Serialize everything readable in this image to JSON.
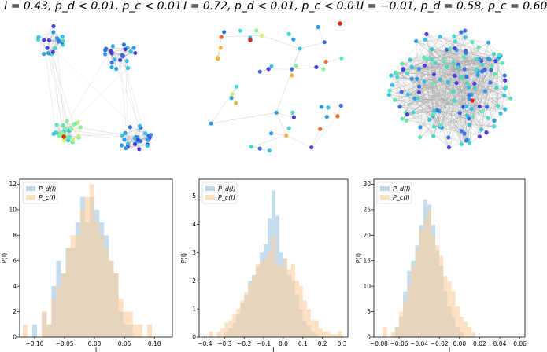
{
  "chart_data": [
    {
      "type": "network",
      "title": "I = 0.43, p_d < 0.01, p_c < 0.01",
      "title_parts": {
        "stat": "I = 0.43,",
        "pd": "p_d < 0.01,",
        "pc": "p_c < 0.01"
      },
      "structure": "four clusters"
    },
    {
      "type": "network",
      "title": "I = 0.72, p_d < 0.01, p_c < 0.01",
      "title_parts": {
        "stat": "I = 0.72,",
        "pd": "p_d < 0.01,",
        "pc": "p_c < 0.01"
      },
      "structure": "sparse tree"
    },
    {
      "type": "network",
      "title": "I = -0.01, p_d = 0.58, p_c = 0.60",
      "title_parts": {
        "stat": "I = −0.01,",
        "pd": "p_d = 0.58,",
        "pc": "p_c = 0.60"
      },
      "structure": "dense random"
    },
    {
      "type": "histogram",
      "xlabel": "I",
      "ylabel": "P(I)",
      "xlim": [
        -0.125,
        0.13
      ],
      "ylim": [
        0,
        12.4
      ],
      "xticks": [
        -0.1,
        -0.05,
        0.0,
        0.05,
        0.1
      ],
      "xtick_labels": [
        "−0.10",
        "−0.05",
        "0.00",
        "0.05",
        "0.10"
      ],
      "yticks": [
        0,
        2,
        4,
        6,
        8,
        10,
        12
      ],
      "bin_start": -0.12,
      "bin_width": 0.008,
      "series": [
        {
          "name": "P_d(I)",
          "color": "#9ec8e4",
          "values": [
            0,
            0,
            1,
            0,
            2,
            1,
            4,
            6,
            5,
            7,
            7,
            9,
            11,
            9,
            11,
            10,
            9,
            8,
            6,
            5,
            2,
            1,
            1,
            0,
            0,
            0,
            0,
            0,
            0,
            0,
            0,
            0
          ]
        },
        {
          "name": "P_c(I)",
          "color": "#fdcf9e",
          "values": [
            1,
            0,
            0,
            0,
            2,
            1,
            3,
            4,
            5,
            7,
            8,
            8,
            10,
            11,
            12,
            9,
            8,
            7,
            6,
            5,
            3,
            2,
            2,
            1,
            1,
            0,
            1,
            0,
            0,
            0,
            0,
            0
          ]
        }
      ],
      "legend": [
        "P_d(I)",
        "P_c(I)"
      ],
      "legend_loc": "upper left"
    },
    {
      "type": "histogram",
      "xlabel": "I",
      "ylabel": "P(I)",
      "xlim": [
        -0.43,
        0.33
      ],
      "ylim": [
        0,
        5.6
      ],
      "xticks": [
        -0.4,
        -0.3,
        -0.2,
        -0.1,
        0.0,
        0.1,
        0.2,
        0.3
      ],
      "xtick_labels": [
        "−0.4",
        "−0.3",
        "−0.2",
        "−0.1",
        "0.0",
        "0.1",
        "0.2",
        "0.3"
      ],
      "yticks": [
        0,
        1,
        2,
        3,
        4,
        5
      ],
      "bin_start": -0.4,
      "bin_width": 0.02,
      "series": [
        {
          "name": "P_d(I)",
          "color": "#9ec8e4",
          "values": [
            0,
            0,
            0,
            0,
            0,
            0.2,
            0.3,
            0.5,
            0.8,
            1.2,
            1.5,
            2,
            2.2,
            2.5,
            3,
            3.3,
            4.2,
            5.2,
            4.3,
            3,
            2.8,
            2.2,
            2,
            1.5,
            1,
            0.6,
            0.4,
            0.2,
            0.1,
            0,
            0,
            0,
            0,
            0,
            0,
            0,
            0
          ]
        },
        {
          "name": "P_c(I)",
          "color": "#fdcf9e",
          "values": [
            0,
            0.2,
            0,
            0.2,
            0.3,
            0.5,
            0.6,
            0.8,
            1,
            1.3,
            1.6,
            1.9,
            2.2,
            2.6,
            2.7,
            2.8,
            3,
            3.6,
            2.6,
            2.5,
            2.8,
            2.4,
            2.6,
            2,
            1.8,
            1.3,
            1,
            0.6,
            0.6,
            0.3,
            0.2,
            0.2,
            0.1,
            0.1,
            0.2,
            0,
            0
          ]
        }
      ],
      "legend": [
        "P_d(I)",
        "P_c(I)"
      ],
      "legend_loc": "upper left"
    },
    {
      "type": "histogram",
      "xlabel": "I",
      "ylabel": "P(I)",
      "xlim": [
        -0.085,
        0.065
      ],
      "ylim": [
        0,
        31
      ],
      "xticks": [
        -0.08,
        -0.06,
        -0.04,
        -0.02,
        0.0,
        0.02,
        0.04,
        0.06
      ],
      "xtick_labels": [
        "−0.08",
        "−0.06",
        "−0.04",
        "−0.02",
        "0.00",
        "0.02",
        "0.04",
        "0.06"
      ],
      "yticks": [
        0,
        5,
        10,
        15,
        20,
        25,
        30
      ],
      "bin_start": -0.08,
      "bin_width": 0.004,
      "series": [
        {
          "name": "P_d(I)",
          "color": "#9ec8e4",
          "values": [
            0,
            0,
            0,
            0,
            2,
            4,
            9,
            13,
            15,
            18,
            22,
            27,
            26,
            22,
            17,
            14,
            9,
            6,
            4,
            2,
            1,
            0,
            0,
            0,
            0,
            0,
            0,
            0,
            0,
            0,
            0,
            0,
            0,
            0,
            0,
            0,
            0
          ]
        },
        {
          "name": "P_c(I)",
          "color": "#fdcf9e",
          "values": [
            0,
            2,
            0,
            1,
            2,
            5,
            7,
            10,
            14,
            17,
            21,
            23,
            25,
            20,
            18,
            16,
            12,
            11,
            9,
            6,
            4,
            3,
            2,
            1,
            0,
            0,
            0,
            0,
            0,
            0,
            0,
            0,
            0,
            0,
            0,
            0,
            0
          ]
        }
      ],
      "legend": [
        "P_d(I)",
        "P_c(I)"
      ],
      "legend_loc": "upper left"
    }
  ]
}
